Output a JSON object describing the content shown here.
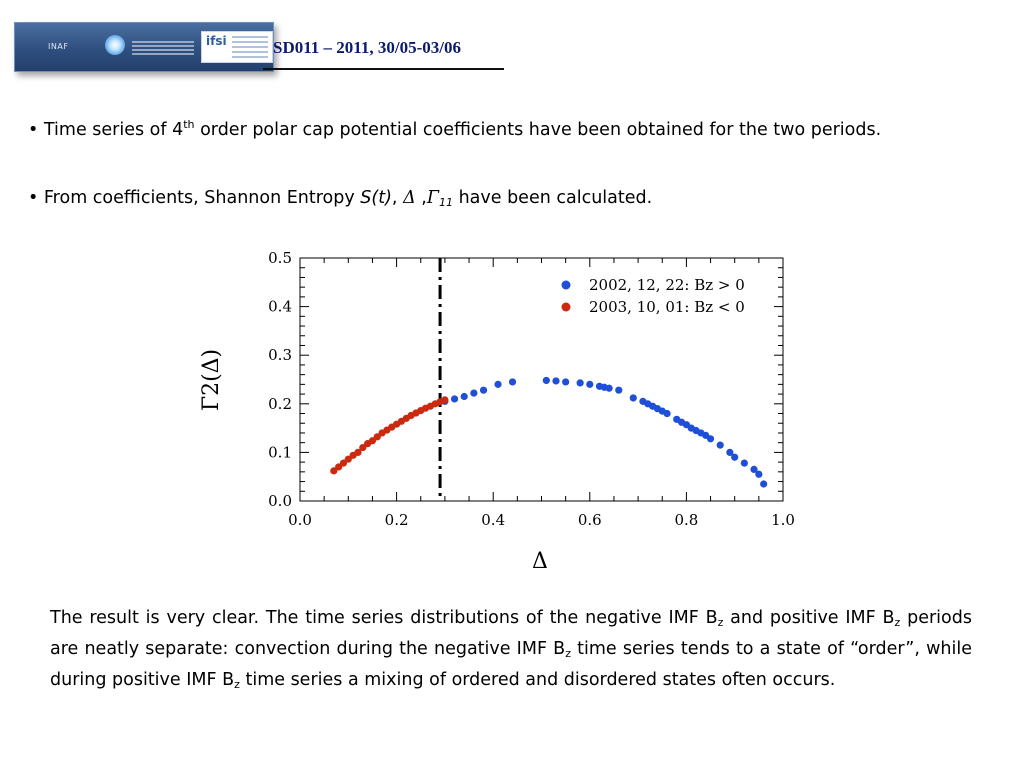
{
  "header": {
    "logo_left_text": "INAF",
    "logo_right_text": "ifsi",
    "session_title": "SD011 – 2011, 30/05-03/06"
  },
  "bullets": [
    {
      "prefix": "• Time series of 4",
      "sup": "th",
      "rest": " order polar cap potential coefficients have been obtained for the two periods."
    },
    {
      "prefix": "• From coefficients, Shannon Entropy ",
      "s_term": "S(t)",
      "comma1": ", ",
      "delta": "Δ",
      "comma2": " ,",
      "gamma": "Γ",
      "gamma_sub": "11",
      "rest": " have been calculated."
    }
  ],
  "chart_data": {
    "type": "scatter",
    "xlabel": "Δ",
    "ylabel": "Γ2(Δ)",
    "xlim": [
      0.0,
      1.0
    ],
    "ylim": [
      0.0,
      0.5
    ],
    "x_ticks": [
      "0.0",
      "0.2",
      "0.4",
      "0.6",
      "0.8",
      "1.0"
    ],
    "y_ticks": [
      "0.0",
      "0.1",
      "0.2",
      "0.3",
      "0.4",
      "0.5"
    ],
    "vline_x": 0.29,
    "legend_position": "top-right",
    "series": [
      {
        "name": "2002, 12, 22:  Bz > 0",
        "color": "#1f4fd6",
        "points": [
          [
            0.3,
            0.205
          ],
          [
            0.32,
            0.21
          ],
          [
            0.34,
            0.215
          ],
          [
            0.36,
            0.222
          ],
          [
            0.38,
            0.228
          ],
          [
            0.41,
            0.24
          ],
          [
            0.44,
            0.245
          ],
          [
            0.51,
            0.248
          ],
          [
            0.53,
            0.247
          ],
          [
            0.55,
            0.245
          ],
          [
            0.58,
            0.243
          ],
          [
            0.6,
            0.24
          ],
          [
            0.62,
            0.236
          ],
          [
            0.63,
            0.234
          ],
          [
            0.64,
            0.232
          ],
          [
            0.66,
            0.228
          ],
          [
            0.69,
            0.212
          ],
          [
            0.71,
            0.205
          ],
          [
            0.72,
            0.2
          ],
          [
            0.73,
            0.195
          ],
          [
            0.74,
            0.19
          ],
          [
            0.75,
            0.185
          ],
          [
            0.76,
            0.18
          ],
          [
            0.78,
            0.168
          ],
          [
            0.79,
            0.162
          ],
          [
            0.8,
            0.157
          ],
          [
            0.81,
            0.15
          ],
          [
            0.82,
            0.145
          ],
          [
            0.83,
            0.14
          ],
          [
            0.84,
            0.135
          ],
          [
            0.85,
            0.128
          ],
          [
            0.87,
            0.115
          ],
          [
            0.89,
            0.1
          ],
          [
            0.9,
            0.09
          ],
          [
            0.92,
            0.078
          ],
          [
            0.94,
            0.065
          ],
          [
            0.95,
            0.055
          ],
          [
            0.96,
            0.035
          ]
        ]
      },
      {
        "name": "2003, 10, 01:  Bz < 0",
        "color": "#cc2a10",
        "points": [
          [
            0.07,
            0.062
          ],
          [
            0.08,
            0.07
          ],
          [
            0.09,
            0.078
          ],
          [
            0.1,
            0.086
          ],
          [
            0.11,
            0.094
          ],
          [
            0.12,
            0.1
          ],
          [
            0.13,
            0.11
          ],
          [
            0.14,
            0.118
          ],
          [
            0.15,
            0.124
          ],
          [
            0.16,
            0.132
          ],
          [
            0.17,
            0.14
          ],
          [
            0.18,
            0.146
          ],
          [
            0.19,
            0.152
          ],
          [
            0.2,
            0.158
          ],
          [
            0.21,
            0.164
          ],
          [
            0.22,
            0.17
          ],
          [
            0.23,
            0.176
          ],
          [
            0.24,
            0.181
          ],
          [
            0.25,
            0.186
          ],
          [
            0.26,
            0.191
          ],
          [
            0.27,
            0.195
          ],
          [
            0.28,
            0.2
          ],
          [
            0.29,
            0.204
          ],
          [
            0.3,
            0.208
          ]
        ]
      }
    ]
  },
  "paragraph": {
    "p1": "The result is very clear. The time series distributions of the negative IMF B",
    "z1": "z",
    "p2": " and positive IMF B",
    "z2": "z",
    "p3": " periods are neatly separate: convection during the negative IMF B",
    "z3": "z",
    "p4": " time series tends to a state of “order”, while during positive IMF B",
    "z4": "z",
    "p5": " time series a mixing of ordered and disordered states often occurs."
  }
}
